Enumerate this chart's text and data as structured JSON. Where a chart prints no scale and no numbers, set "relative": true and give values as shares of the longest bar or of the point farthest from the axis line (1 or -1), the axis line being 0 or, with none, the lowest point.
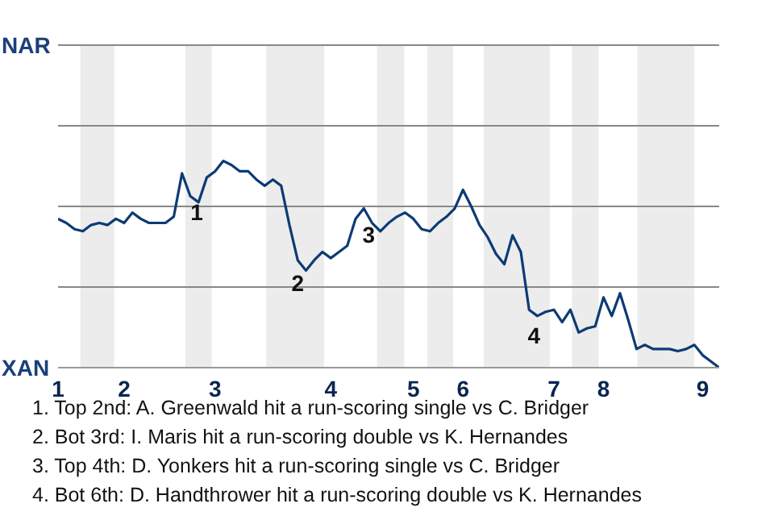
{
  "chart_data": {
    "type": "line",
    "relative": true,
    "categories": [
      "1",
      null,
      null,
      null,
      null,
      null,
      null,
      null,
      "2",
      null,
      null,
      null,
      null,
      null,
      null,
      null,
      null,
      null,
      null,
      "3",
      null,
      null,
      null,
      null,
      null,
      null,
      null,
      null,
      null,
      null,
      null,
      null,
      null,
      "4",
      null,
      null,
      null,
      null,
      null,
      null,
      null,
      null,
      null,
      "5",
      null,
      null,
      null,
      null,
      null,
      "6",
      null,
      null,
      null,
      null,
      null,
      null,
      null,
      null,
      null,
      null,
      "7",
      null,
      null,
      null,
      null,
      null,
      "8",
      null,
      null,
      null,
      null,
      null,
      null,
      null,
      null,
      null,
      null,
      null,
      "9",
      null,
      null
    ],
    "series": [
      {
        "color": "#0d3b75",
        "values": [
          0.72,
          0.7,
          0.67,
          0.66,
          0.69,
          0.7,
          0.69,
          0.72,
          0.7,
          0.75,
          0.72,
          0.7,
          0.7,
          0.7,
          0.73,
          0.94,
          0.83,
          0.8,
          0.92,
          0.95,
          1,
          0.98,
          0.95,
          0.95,
          0.91,
          0.88,
          0.91,
          0.88,
          0.69,
          0.52,
          0.47,
          0.52,
          0.56,
          0.53,
          0.56,
          0.59,
          0.72,
          0.77,
          0.7,
          0.66,
          0.7,
          0.73,
          0.75,
          0.72,
          0.67,
          0.66,
          0.7,
          0.73,
          0.77,
          0.86,
          0.78,
          0.69,
          0.63,
          0.55,
          0.5,
          0.64,
          0.56,
          0.28,
          0.25,
          0.27,
          0.28,
          0.22,
          0.28,
          0.17,
          0.19,
          0.2,
          0.34,
          0.25,
          0.36,
          0.23,
          0.09,
          0.11,
          0.09,
          0.09,
          0.09,
          0.08,
          0.09,
          0.11,
          0.06,
          0.03,
          0
        ]
      }
    ],
    "marker": "none",
    "ref_lines": [
      {
        "axis": "y",
        "value": 0.39,
        "color": "#888888"
      },
      {
        "axis": "y",
        "value": 0.78,
        "color": "#888888"
      },
      {
        "axis": "y",
        "value": 1.17,
        "color": "#888888"
      },
      {
        "axis": "y",
        "value": 1.56,
        "color": "#888888"
      }
    ],
    "annotations": [
      "NAR",
      "XAN",
      "1",
      "2",
      "3",
      "4",
      "1. Top 2nd: A. Greenwald hit a run-scoring single vs C. Bridger",
      "2. Bot 3rd: I. Maris hit a run-scoring double vs K. Hernandes",
      "3. Top 4th: D. Yonkers hit a run-scoring single vs C. Bridger",
      "4. Bot 6th: D. Handthrower hit a run-scoring double vs K. Hernandes"
    ]
  }
}
